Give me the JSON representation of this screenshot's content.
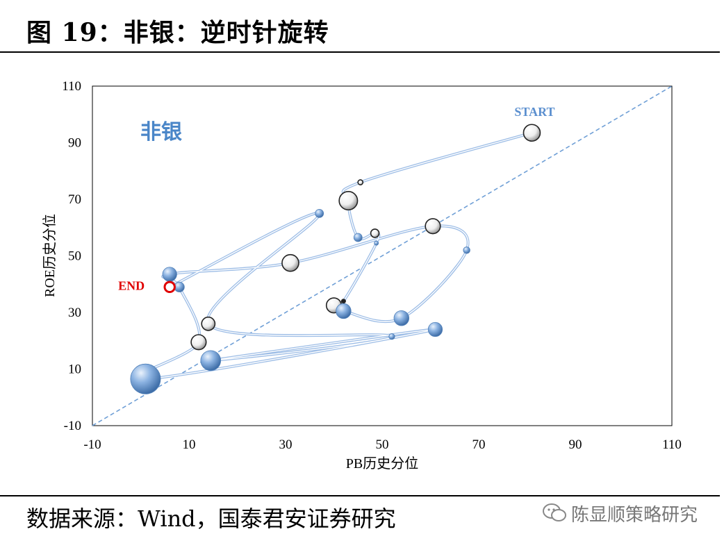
{
  "title": "图 19：非银：逆时针旋转",
  "source": "数据来源：Wind，国泰君安证券研究",
  "watermark": {
    "icon": "wechat-icon",
    "text": "陈显顺策略研究"
  },
  "chart_data": {
    "type": "scatter",
    "subtitle": "非银",
    "xlabel": "PB历史分位",
    "ylabel": "ROE历史分位",
    "xlim": [
      -10,
      110
    ],
    "ylim": [
      -10,
      110
    ],
    "xticks": [
      "-10",
      "10",
      "30",
      "50",
      "70",
      "90",
      "110"
    ],
    "yticks": [
      "-10",
      "10",
      "30",
      "50",
      "70",
      "90",
      "110"
    ],
    "diagonal": true,
    "colors": {
      "bubble_blue": "#7ea6d8",
      "bubble_white": "#e8e8e8",
      "path": "#9dbde6",
      "diagonal": "#6f9fd6",
      "start_label": "#5b8fcf",
      "end_label": "#e00000",
      "subtitle": "#4a86c8"
    },
    "annotations": [
      {
        "text": "START",
        "x": 81,
        "y": 93.5,
        "color": "#5b8fcf"
      },
      {
        "text": "END",
        "x": 6,
        "y": 39,
        "color": "#e00000"
      }
    ],
    "path": [
      {
        "x": 81.0,
        "y": 93.5,
        "s": 1.0,
        "style": "white"
      },
      {
        "x": 45.5,
        "y": 76.0,
        "s": 0.3,
        "style": "white"
      },
      {
        "x": 43.0,
        "y": 69.5,
        "s": 1.1,
        "style": "white"
      },
      {
        "x": 45.0,
        "y": 56.5,
        "s": 0.5,
        "style": "blue"
      },
      {
        "x": 48.5,
        "y": 58.0,
        "s": 0.5,
        "style": "white"
      },
      {
        "x": 48.8,
        "y": 54.5,
        "s": 0.25,
        "style": "blue"
      },
      {
        "x": 42.0,
        "y": 34.0,
        "s": 0.2,
        "style": "dark"
      },
      {
        "x": 40.0,
        "y": 32.5,
        "s": 0.9,
        "style": "white"
      },
      {
        "x": 42.0,
        "y": 30.5,
        "s": 0.9,
        "style": "blue"
      },
      {
        "x": 54.0,
        "y": 28.0,
        "s": 0.9,
        "style": "blue"
      },
      {
        "x": 67.5,
        "y": 52.0,
        "s": 0.4,
        "style": "blue"
      },
      {
        "x": 60.5,
        "y": 60.5,
        "s": 0.9,
        "style": "white"
      },
      {
        "x": 31.0,
        "y": 47.5,
        "s": 1.0,
        "style": "white"
      },
      {
        "x": 6.0,
        "y": 43.5,
        "s": 0.85,
        "style": "blue"
      },
      {
        "x": 8.0,
        "y": 39.0,
        "s": 0.6,
        "style": "blue"
      },
      {
        "x": 12.0,
        "y": 19.5,
        "s": 0.9,
        "style": "white"
      },
      {
        "x": 1.0,
        "y": 6.5,
        "s": 1.8,
        "style": "blue"
      },
      {
        "x": 61.0,
        "y": 24.0,
        "s": 0.85,
        "style": "blue"
      },
      {
        "x": 14.5,
        "y": 13.0,
        "s": 1.2,
        "style": "blue"
      },
      {
        "x": 52.0,
        "y": 21.5,
        "s": 0.35,
        "style": "blue"
      },
      {
        "x": 14.0,
        "y": 26.0,
        "s": 0.8,
        "style": "white"
      },
      {
        "x": 37.0,
        "y": 65.0,
        "s": 0.5,
        "style": "blue"
      },
      {
        "x": 6.0,
        "y": 39.0,
        "s": 0.6,
        "style": "end"
      }
    ]
  }
}
